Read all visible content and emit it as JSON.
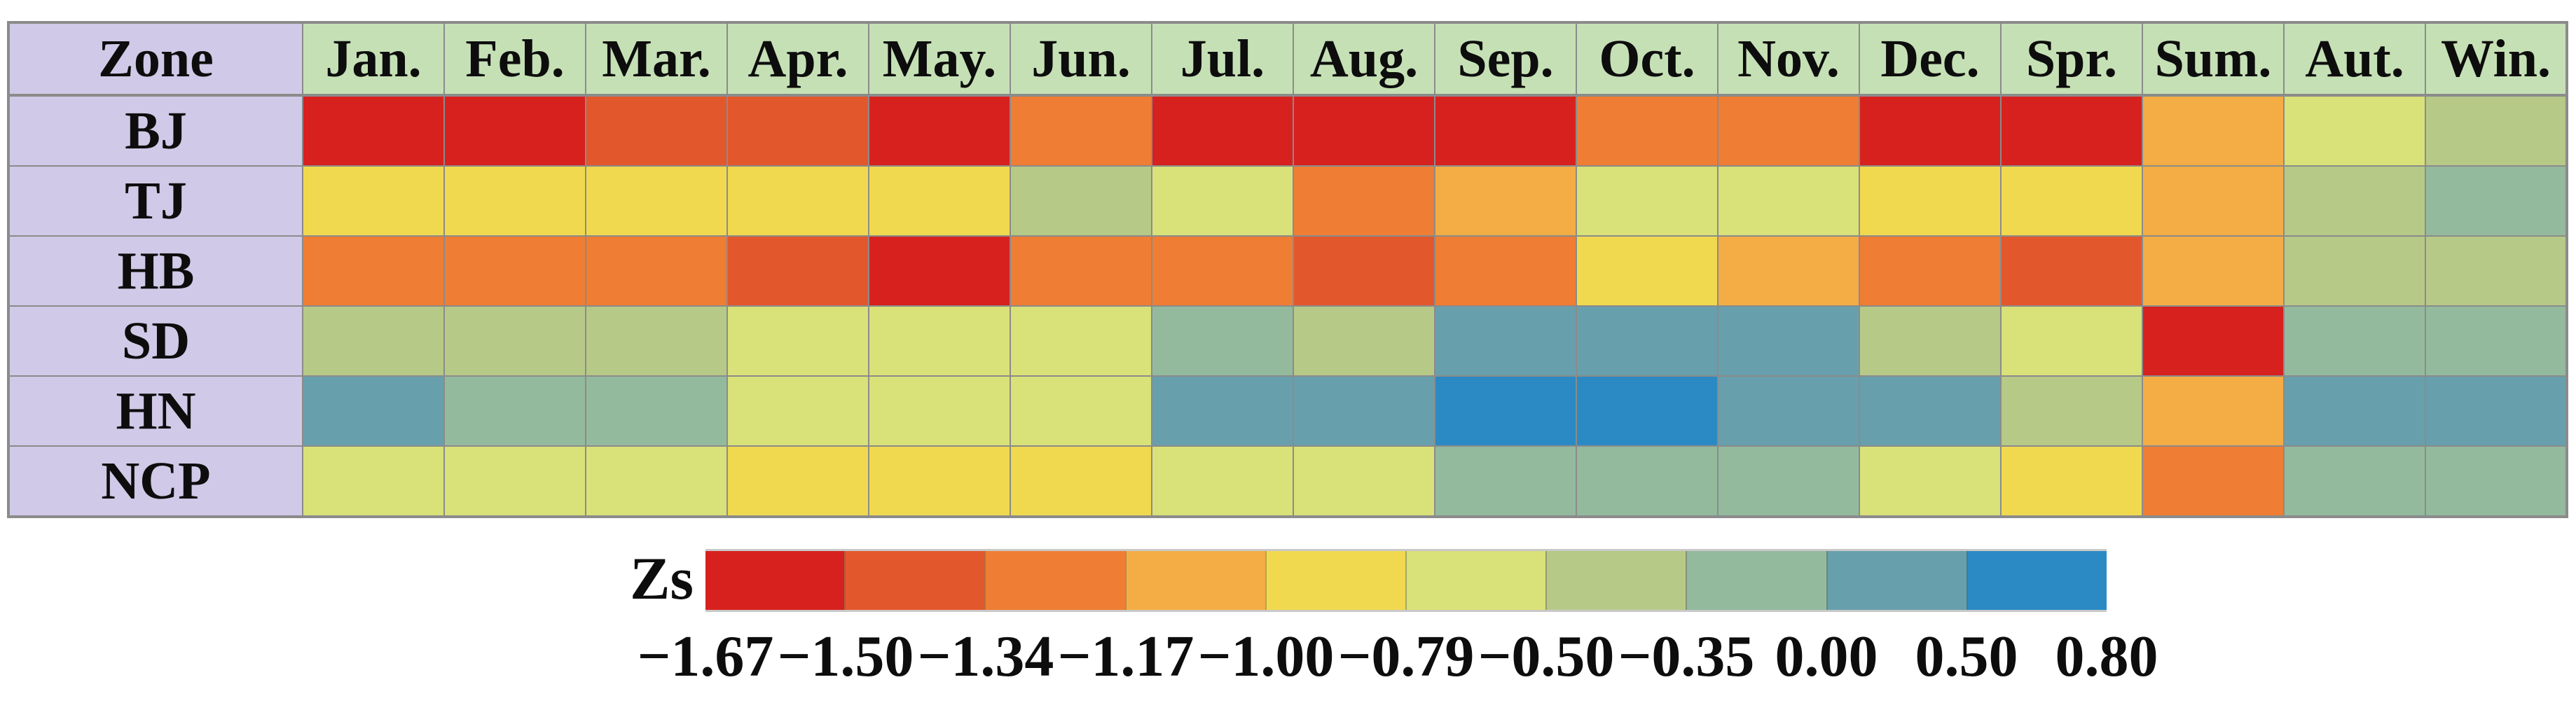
{
  "chart_data": {
    "type": "heatmap",
    "title": "",
    "corner_label": "Zone",
    "legend_title": "Zs",
    "columns": [
      "Jan.",
      "Feb.",
      "Mar.",
      "Apr.",
      "May.",
      "Jun.",
      "Jul.",
      "Aug.",
      "Sep.",
      "Oct.",
      "Nov.",
      "Dec.",
      "Spr.",
      "Sum.",
      "Aut.",
      "Win."
    ],
    "rows": [
      {
        "label": "BJ",
        "bins": [
          1,
          1,
          2,
          2,
          1,
          3,
          1,
          1,
          1,
          3,
          3,
          1,
          1,
          4,
          6,
          7
        ]
      },
      {
        "label": "TJ",
        "bins": [
          5,
          5,
          5,
          5,
          5,
          7,
          6,
          3,
          4,
          6,
          6,
          5,
          5,
          4,
          7,
          8
        ]
      },
      {
        "label": "HB",
        "bins": [
          3,
          3,
          3,
          2,
          1,
          3,
          3,
          2,
          3,
          5,
          4,
          3,
          2,
          4,
          7,
          7
        ]
      },
      {
        "label": "SD",
        "bins": [
          7,
          7,
          7,
          6,
          6,
          6,
          8,
          7,
          9,
          9,
          9,
          7,
          6,
          1,
          8,
          8
        ]
      },
      {
        "label": "HN",
        "bins": [
          9,
          8,
          8,
          6,
          6,
          6,
          9,
          9,
          10,
          10,
          9,
          9,
          7,
          4,
          9,
          9
        ]
      },
      {
        "label": "NCP",
        "bins": [
          6,
          6,
          6,
          5,
          5,
          5,
          6,
          6,
          8,
          8,
          8,
          6,
          5,
          3,
          8,
          8
        ]
      }
    ],
    "bin_edges": [
      -1.67,
      -1.5,
      -1.34,
      -1.17,
      -1.0,
      -0.79,
      -0.5,
      -0.35,
      0.0,
      0.5,
      0.8
    ],
    "bin_colors": [
      "#d7211e",
      "#e3572c",
      "#ef7d33",
      "#f3ad44",
      "#f1d94f",
      "#d9e179",
      "#b7c987",
      "#94ba9e",
      "#67a0ac",
      "#2b8ac4"
    ],
    "legend_position": "bottom",
    "grid": true
  },
  "legend": {
    "label": "Zs",
    "ticks": [
      "−1.67",
      "−1.50",
      "−1.34",
      "−1.17",
      "−1.00",
      "−0.79",
      "−0.50",
      "−0.35",
      "0.00",
      "0.50",
      "0.80"
    ]
  },
  "colors": {
    "header_bg": "#c6e0b6",
    "zone_bg": "#d0c9e7",
    "grid_line": "#8b8b8b",
    "background": "#ffffff"
  }
}
